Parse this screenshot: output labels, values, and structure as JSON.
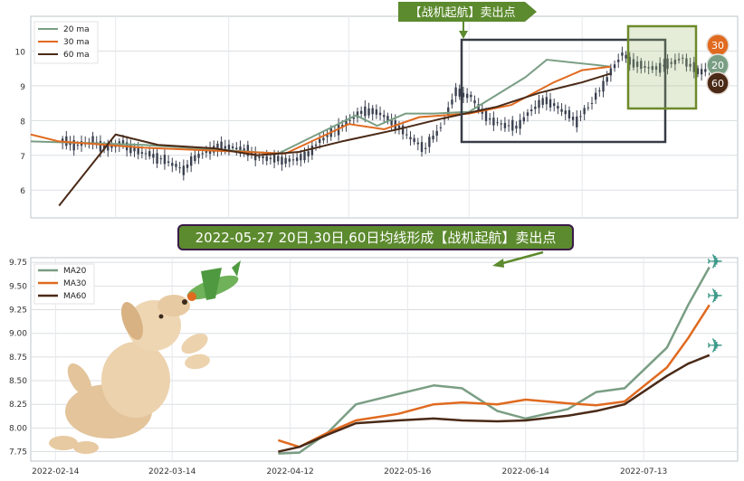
{
  "chart_data": [
    {
      "type": "line",
      "title": "",
      "ylim": [
        5.2,
        11.0
      ],
      "yticks": [
        "6",
        "7",
        "8",
        "9",
        "10"
      ],
      "legend": {
        "position": "top-left",
        "entries": [
          "20 ma",
          "30 ma",
          "60 ma"
        ]
      },
      "colors": {
        "ma20": "#7a9e84",
        "ma30": "#e06a1f",
        "ma60": "#4a2a17",
        "candle": "#3b4150"
      },
      "series": [
        {
          "name": "20 ma",
          "x": [
            0,
            0.16,
            0.35,
            0.4,
            0.46,
            0.49,
            0.53,
            0.57,
            0.62,
            0.7,
            0.73,
            0.79,
            0.8,
            0.82
          ],
          "values": [
            7.4,
            7.3,
            7.05,
            7.55,
            8.15,
            7.85,
            8.2,
            8.2,
            8.25,
            9.25,
            9.75,
            9.62,
            9.6,
            9.55
          ]
        },
        {
          "name": "30 ma",
          "x": [
            0,
            0.04,
            0.16,
            0.36,
            0.45,
            0.5,
            0.55,
            0.62,
            0.68,
            0.74,
            0.78,
            0.82
          ],
          "values": [
            7.6,
            7.4,
            7.22,
            7.05,
            7.9,
            7.75,
            8.1,
            8.2,
            8.45,
            9.1,
            9.45,
            9.55
          ]
        },
        {
          "name": "60 ma",
          "x": [
            0.04,
            0.12,
            0.18,
            0.26,
            0.32,
            0.38,
            0.44,
            0.52,
            0.58,
            0.66,
            0.72,
            0.78,
            0.82
          ],
          "values": [
            5.55,
            7.6,
            7.3,
            7.2,
            7.0,
            7.1,
            7.4,
            7.75,
            8.05,
            8.4,
            8.8,
            9.1,
            9.35
          ]
        }
      ],
      "candles_close": [
        7.4,
        7.3,
        7.4,
        7.2,
        7.35,
        7.1,
        7.0,
        6.8,
        6.6,
        7.0,
        7.2,
        7.25,
        7.15,
        6.95,
        6.9,
        6.85,
        6.95,
        7.4,
        7.7,
        8.0,
        8.3,
        8.2,
        7.9,
        7.5,
        7.2,
        7.8,
        8.8,
        8.7,
        8.1,
        7.9,
        7.8,
        8.3,
        8.6,
        8.3,
        8.0,
        8.5,
        9.2,
        9.9,
        9.6,
        9.5,
        9.6,
        9.8,
        9.4,
        9.5
      ],
      "markers": [
        {
          "label": "30",
          "color": "#e06a1f"
        },
        {
          "label": "20",
          "color": "#7a9e84"
        },
        {
          "label": "60",
          "color": "#4a2a17"
        }
      ],
      "annotations": [
        "【战机起航】卖出点"
      ]
    },
    {
      "type": "line",
      "title": "2022-05-27 20日,30日,60日均线形成【战机起航】卖出点",
      "ylim": [
        7.65,
        9.8
      ],
      "yticks": [
        "7.75",
        "8.00",
        "8.25",
        "8.50",
        "8.75",
        "9.00",
        "9.25",
        "9.50",
        "9.75"
      ],
      "xticks": [
        "2022-02-14",
        "2022-03-14",
        "2022-04-12",
        "2022-05-16",
        "2022-06-14",
        "2022-07-13"
      ],
      "legend": {
        "position": "top-left",
        "entries": [
          "MA20",
          "MA30",
          "MA60"
        ]
      },
      "series": [
        {
          "name": "MA20",
          "x": [
            0.35,
            0.38,
            0.42,
            0.46,
            0.52,
            0.57,
            0.61,
            0.66,
            0.7,
            0.76,
            0.8,
            0.84,
            0.9,
            0.93,
            0.96
          ],
          "values": [
            7.73,
            7.74,
            7.95,
            8.25,
            8.36,
            8.45,
            8.42,
            8.18,
            8.1,
            8.2,
            8.38,
            8.42,
            8.85,
            9.3,
            9.7
          ]
        },
        {
          "name": "MA30",
          "x": [
            0.35,
            0.38,
            0.42,
            0.46,
            0.52,
            0.57,
            0.61,
            0.66,
            0.7,
            0.76,
            0.8,
            0.84,
            0.9,
            0.93,
            0.96
          ],
          "values": [
            7.87,
            7.8,
            7.95,
            8.08,
            8.15,
            8.25,
            8.27,
            8.25,
            8.3,
            8.26,
            8.24,
            8.28,
            8.64,
            8.95,
            9.3
          ]
        },
        {
          "name": "MA60",
          "x": [
            0.35,
            0.38,
            0.42,
            0.46,
            0.52,
            0.57,
            0.61,
            0.66,
            0.7,
            0.76,
            0.8,
            0.84,
            0.9,
            0.93,
            0.96
          ],
          "values": [
            7.75,
            7.8,
            7.93,
            8.05,
            8.08,
            8.1,
            8.08,
            8.07,
            8.08,
            8.13,
            8.18,
            8.25,
            8.55,
            8.68,
            8.77
          ]
        }
      ]
    }
  ]
}
